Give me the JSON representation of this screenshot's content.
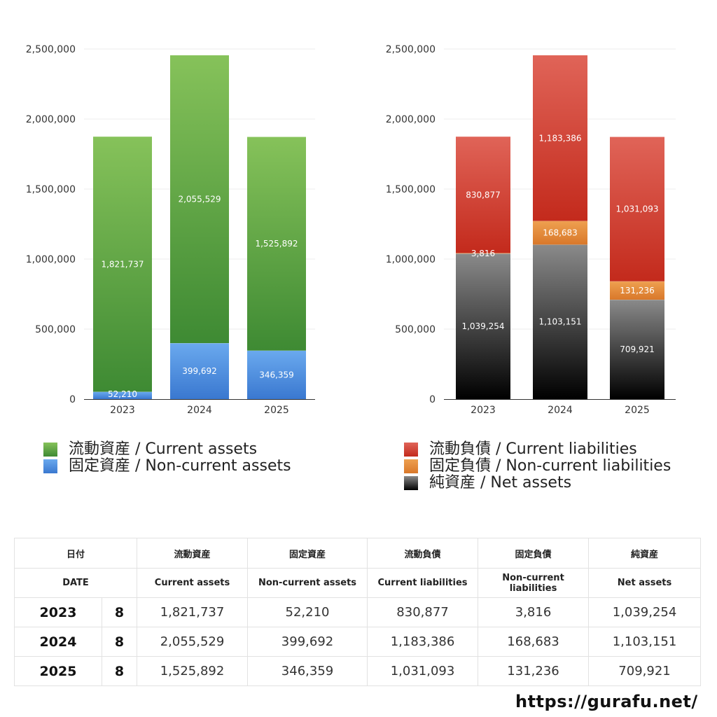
{
  "chart_data": [
    {
      "type": "bar",
      "stacked": true,
      "categories": [
        "2023",
        "2024",
        "2025"
      ],
      "ylim": [
        0,
        2500000
      ],
      "yticks": [
        "0",
        "500,000",
        "1,000,000",
        "1,500,000",
        "2,000,000",
        "2,500,000"
      ],
      "ytick_values": [
        0,
        500000,
        1000000,
        1500000,
        2000000,
        2500000
      ],
      "grid": true,
      "series": [
        {
          "name": "固定資産 / Non-current assets",
          "values": [
            52210,
            399692,
            346359
          ],
          "labels": [
            "52,210",
            "399,692",
            "346,359"
          ],
          "color_top": "#6aa9ee",
          "color_bottom": "#3a78d0"
        },
        {
          "name": "流動資産 / Current assets",
          "values": [
            1821737,
            2055529,
            1525892
          ],
          "labels": [
            "1,821,737",
            "2,055,529",
            "1,525,892"
          ],
          "color_top": "#86c25a",
          "color_bottom": "#3e8a33"
        }
      ],
      "legend_order": [
        1,
        0
      ],
      "legend_placement": "bottom-left"
    },
    {
      "type": "bar",
      "stacked": true,
      "categories": [
        "2023",
        "2024",
        "2025"
      ],
      "ylim": [
        0,
        2500000
      ],
      "yticks": [
        "0",
        "500,000",
        "1,000,000",
        "1,500,000",
        "2,000,000",
        "2,500,000"
      ],
      "ytick_values": [
        0,
        500000,
        1000000,
        1500000,
        2000000,
        2500000
      ],
      "grid": true,
      "series": [
        {
          "name": "純資産 / Net assets",
          "values": [
            1039254,
            1103151,
            709921
          ],
          "labels": [
            "1,039,254",
            "1,103,151",
            "709,921"
          ],
          "color_top": "#8a8a8a",
          "color_bottom": "#000000"
        },
        {
          "name": "固定負債 / Non-current liabilities",
          "values": [
            3816,
            168683,
            131236
          ],
          "labels": [
            "3,816",
            "168,683",
            "131,236"
          ],
          "color_top": "#eea050",
          "color_bottom": "#d9782a"
        },
        {
          "name": "流動負債 / Current liabilities",
          "values": [
            830877,
            1183386,
            1031093
          ],
          "labels": [
            "830,877",
            "1,183,386",
            "1,031,093"
          ],
          "color_top": "#e06458",
          "color_bottom": "#c32a1c"
        }
      ],
      "legend_order": [
        2,
        1,
        0
      ],
      "legend_placement": "bottom-right"
    }
  ],
  "table": {
    "header_jp": [
      "日付",
      "",
      "流動資産",
      "固定資産",
      "流動負債",
      "固定負債",
      "純資産"
    ],
    "header_en": [
      "DATE",
      "",
      "Current assets",
      "Non-current assets",
      "Current liabilities",
      "Non-current liabilities",
      "Net assets"
    ],
    "rows": [
      {
        "year": "2023",
        "months": "8",
        "values": [
          "1,821,737",
          "52,210",
          "830,877",
          "3,816",
          "1,039,254"
        ]
      },
      {
        "year": "2024",
        "months": "8",
        "values": [
          "2,055,529",
          "399,692",
          "1,183,386",
          "168,683",
          "1,103,151"
        ]
      },
      {
        "year": "2025",
        "months": "8",
        "values": [
          "1,525,892",
          "346,359",
          "1,031,093",
          "131,236",
          "709,921"
        ]
      }
    ]
  },
  "source": "https://gurafu.net/"
}
